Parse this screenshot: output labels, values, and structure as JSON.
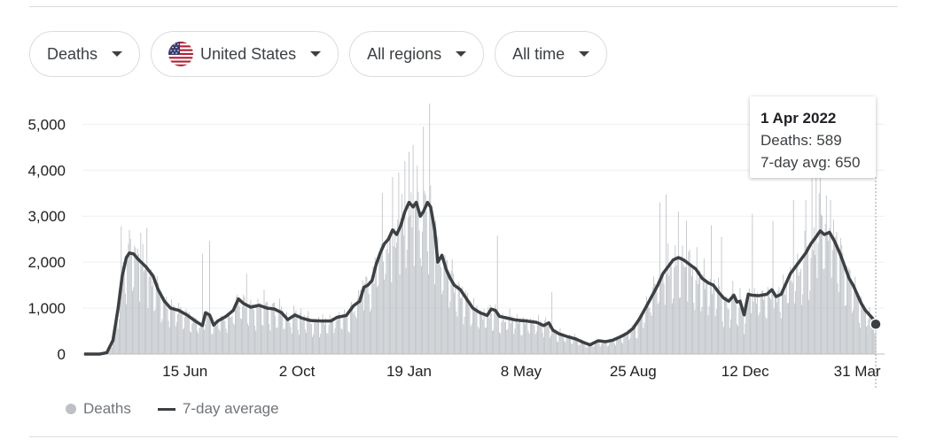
{
  "filters": {
    "metric": "Deaths",
    "country": "United States",
    "region": "All regions",
    "period": "All time"
  },
  "tooltip": {
    "date": "1 Apr 2022",
    "deaths_label": "Deaths: 589",
    "avg_label": "7-day avg: 650"
  },
  "legend": {
    "bars_label": "Deaths",
    "line_label": "7-day average"
  },
  "colors": {
    "bars": "#bdc1c6",
    "line": "#3c4043",
    "grid": "#eceff1",
    "axis_text": "#202124"
  },
  "chart_data": {
    "type": "bar",
    "title": "",
    "xlabel": "",
    "ylabel": "",
    "ylim": [
      0,
      5200
    ],
    "y_ticks": [
      0,
      1000,
      2000,
      3000,
      4000,
      5000
    ],
    "y_tick_labels": [
      "0",
      "1,000",
      "2,000",
      "3,000",
      "4,000",
      "5,000"
    ],
    "x_range_days": [
      0,
      770
    ],
    "x_ticks": [
      {
        "label": "15 Jun",
        "day": 98
      },
      {
        "label": "2 Oct",
        "day": 207
      },
      {
        "label": "19 Jan",
        "day": 316
      },
      {
        "label": "8 May",
        "day": 425
      },
      {
        "label": "25 Aug",
        "day": 534
      },
      {
        "label": "12 Dec",
        "day": 643
      },
      {
        "label": "31 Mar",
        "day": 752
      }
    ],
    "series": [
      {
        "name": "7-day average",
        "keypoints": [
          [
            0,
            0
          ],
          [
            15,
            0
          ],
          [
            22,
            30
          ],
          [
            28,
            300
          ],
          [
            33,
            1000
          ],
          [
            37,
            1700
          ],
          [
            41,
            2100
          ],
          [
            44,
            2200
          ],
          [
            48,
            2180
          ],
          [
            53,
            2050
          ],
          [
            60,
            1900
          ],
          [
            67,
            1700
          ],
          [
            72,
            1400
          ],
          [
            78,
            1150
          ],
          [
            84,
            1000
          ],
          [
            92,
            950
          ],
          [
            100,
            850
          ],
          [
            108,
            720
          ],
          [
            115,
            620
          ],
          [
            118,
            900
          ],
          [
            122,
            850
          ],
          [
            126,
            630
          ],
          [
            130,
            720
          ],
          [
            138,
            820
          ],
          [
            145,
            950
          ],
          [
            150,
            1200
          ],
          [
            155,
            1100
          ],
          [
            162,
            1020
          ],
          [
            170,
            1060
          ],
          [
            178,
            1000
          ],
          [
            185,
            980
          ],
          [
            192,
            900
          ],
          [
            198,
            750
          ],
          [
            205,
            850
          ],
          [
            212,
            780
          ],
          [
            220,
            730
          ],
          [
            230,
            720
          ],
          [
            240,
            720
          ],
          [
            246,
            800
          ],
          [
            255,
            840
          ],
          [
            262,
            1050
          ],
          [
            268,
            1150
          ],
          [
            272,
            1450
          ],
          [
            276,
            1500
          ],
          [
            280,
            1600
          ],
          [
            284,
            1950
          ],
          [
            288,
            2200
          ],
          [
            292,
            2400
          ],
          [
            296,
            2500
          ],
          [
            300,
            2700
          ],
          [
            304,
            2600
          ],
          [
            308,
            2800
          ],
          [
            312,
            3100
          ],
          [
            316,
            3300
          ],
          [
            320,
            3200
          ],
          [
            323,
            3300
          ],
          [
            327,
            3000
          ],
          [
            330,
            3100
          ],
          [
            334,
            3300
          ],
          [
            337,
            3200
          ],
          [
            341,
            2700
          ],
          [
            344,
            2000
          ],
          [
            348,
            2150
          ],
          [
            352,
            1850
          ],
          [
            356,
            1650
          ],
          [
            360,
            1500
          ],
          [
            366,
            1400
          ],
          [
            372,
            1200
          ],
          [
            378,
            1000
          ],
          [
            385,
            900
          ],
          [
            392,
            840
          ],
          [
            396,
            980
          ],
          [
            400,
            950
          ],
          [
            404,
            820
          ],
          [
            412,
            780
          ],
          [
            420,
            740
          ],
          [
            430,
            720
          ],
          [
            440,
            690
          ],
          [
            447,
            620
          ],
          [
            452,
            680
          ],
          [
            456,
            520
          ],
          [
            462,
            440
          ],
          [
            470,
            380
          ],
          [
            478,
            330
          ],
          [
            485,
            260
          ],
          [
            492,
            200
          ],
          [
            500,
            290
          ],
          [
            507,
            270
          ],
          [
            514,
            300
          ],
          [
            522,
            380
          ],
          [
            528,
            450
          ],
          [
            534,
            560
          ],
          [
            540,
            760
          ],
          [
            546,
            1000
          ],
          [
            552,
            1250
          ],
          [
            558,
            1500
          ],
          [
            563,
            1750
          ],
          [
            568,
            1900
          ],
          [
            573,
            2050
          ],
          [
            578,
            2100
          ],
          [
            583,
            2050
          ],
          [
            589,
            1950
          ],
          [
            595,
            1850
          ],
          [
            601,
            1650
          ],
          [
            607,
            1550
          ],
          [
            612,
            1500
          ],
          [
            617,
            1350
          ],
          [
            622,
            1220
          ],
          [
            627,
            1150
          ],
          [
            632,
            1280
          ],
          [
            635,
            1130
          ],
          [
            638,
            1150
          ],
          [
            642,
            850
          ],
          [
            646,
            1300
          ],
          [
            650,
            1280
          ],
          [
            656,
            1270
          ],
          [
            664,
            1300
          ],
          [
            669,
            1400
          ],
          [
            673,
            1250
          ],
          [
            678,
            1300
          ],
          [
            683,
            1550
          ],
          [
            687,
            1750
          ],
          [
            692,
            1900
          ],
          [
            697,
            2050
          ],
          [
            702,
            2200
          ],
          [
            707,
            2400
          ],
          [
            712,
            2550
          ],
          [
            716,
            2680
          ],
          [
            720,
            2600
          ],
          [
            725,
            2650
          ],
          [
            730,
            2450
          ],
          [
            735,
            2200
          ],
          [
            740,
            1900
          ],
          [
            744,
            1650
          ],
          [
            748,
            1500
          ],
          [
            752,
            1300
          ],
          [
            756,
            1100
          ],
          [
            760,
            950
          ],
          [
            764,
            850
          ],
          [
            768,
            750
          ],
          [
            770,
            650
          ]
        ]
      },
      {
        "name": "Deaths",
        "note": "daily bars scattered around the 7-day average with weekend dips",
        "spikes": [
          [
            36,
            2780
          ],
          [
            44,
            2700
          ],
          [
            55,
            2640
          ],
          [
            61,
            2750
          ],
          [
            115,
            2180
          ],
          [
            122,
            2460
          ],
          [
            158,
            1750
          ],
          [
            175,
            1400
          ],
          [
            271,
            1600
          ],
          [
            290,
            3500
          ],
          [
            300,
            3850
          ],
          [
            306,
            3950
          ],
          [
            312,
            4200
          ],
          [
            316,
            4400
          ],
          [
            320,
            4550
          ],
          [
            324,
            4100
          ],
          [
            330,
            4950
          ],
          [
            336,
            5450
          ],
          [
            342,
            2900
          ],
          [
            402,
            2580
          ],
          [
            455,
            1350
          ],
          [
            560,
            3300
          ],
          [
            566,
            3470
          ],
          [
            578,
            3100
          ],
          [
            586,
            2900
          ],
          [
            610,
            2800
          ],
          [
            620,
            2550
          ],
          [
            650,
            3050
          ],
          [
            670,
            2900
          ],
          [
            690,
            3350
          ],
          [
            702,
            3350
          ],
          [
            708,
            3820
          ],
          [
            712,
            4000
          ],
          [
            716,
            3950
          ],
          [
            722,
            3450
          ],
          [
            726,
            3350
          ]
        ]
      }
    ],
    "highlight": {
      "day": 770,
      "value": 650
    }
  }
}
